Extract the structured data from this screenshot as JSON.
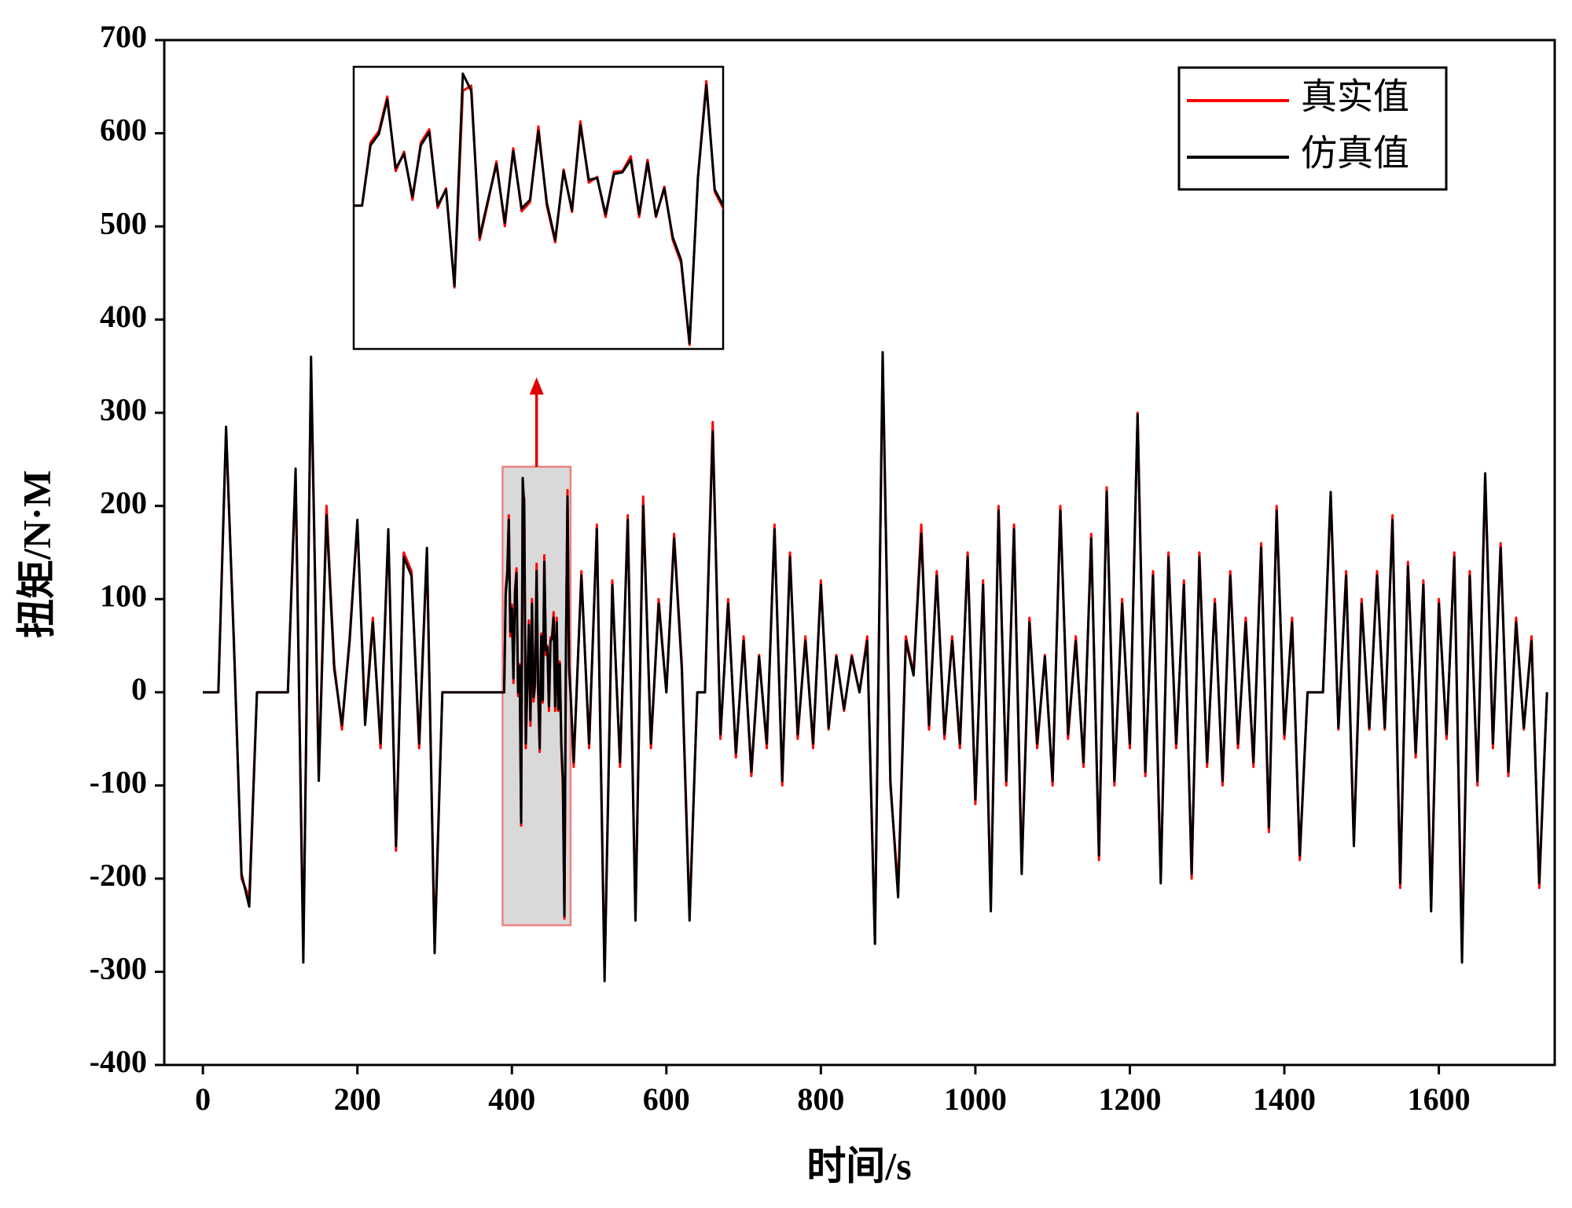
{
  "chart_data": {
    "type": "line",
    "xlabel": "时间/s",
    "ylabel": "扭矩/N·M",
    "xlim": [
      -50,
      1750
    ],
    "ylim": [
      -400,
      700
    ],
    "xticks": [
      0,
      200,
      400,
      600,
      800,
      1000,
      1200,
      1400,
      1600
    ],
    "yticks": [
      -400,
      -300,
      -200,
      -100,
      0,
      100,
      200,
      300,
      400,
      500,
      600,
      700
    ],
    "legend": "upper right",
    "inset": {
      "xlim": [
        388,
        476
      ],
      "ylim": [
        -250,
        242
      ]
    },
    "x": [
      0,
      10,
      20,
      30,
      40,
      50,
      60,
      70,
      80,
      90,
      100,
      110,
      120,
      130,
      140,
      150,
      160,
      170,
      180,
      190,
      200,
      210,
      220,
      230,
      240,
      250,
      260,
      270,
      280,
      290,
      300,
      310,
      320,
      330,
      340,
      350,
      360,
      370,
      380,
      390,
      392,
      394,
      396,
      398,
      400,
      402,
      404,
      406,
      408,
      410,
      412,
      414,
      416,
      418,
      420,
      422,
      424,
      426,
      428,
      430,
      432,
      434,
      436,
      438,
      440,
      442,
      444,
      446,
      448,
      450,
      452,
      454,
      456,
      458,
      460,
      462,
      464,
      466,
      468,
      470,
      472,
      474,
      476,
      480,
      490,
      500,
      510,
      520,
      530,
      540,
      550,
      560,
      570,
      580,
      590,
      600,
      610,
      620,
      630,
      640,
      650,
      660,
      670,
      680,
      690,
      700,
      710,
      720,
      730,
      740,
      750,
      760,
      770,
      780,
      790,
      800,
      810,
      820,
      830,
      840,
      850,
      860,
      870,
      880,
      890,
      900,
      910,
      920,
      930,
      940,
      950,
      960,
      970,
      980,
      990,
      1000,
      1010,
      1020,
      1030,
      1040,
      1050,
      1060,
      1070,
      1080,
      1090,
      1100,
      1110,
      1120,
      1130,
      1140,
      1150,
      1160,
      1170,
      1180,
      1190,
      1200,
      1210,
      1220,
      1230,
      1240,
      1250,
      1260,
      1270,
      1280,
      1290,
      1300,
      1310,
      1320,
      1330,
      1340,
      1350,
      1360,
      1370,
      1380,
      1390,
      1400,
      1410,
      1420,
      1430,
      1440,
      1450,
      1460,
      1470,
      1480,
      1490,
      1500,
      1510,
      1520,
      1530,
      1540,
      1550,
      1560,
      1570,
      1580,
      1590,
      1600,
      1610,
      1620,
      1630,
      1640,
      1650,
      1660,
      1670,
      1680,
      1690,
      1700,
      1710,
      1720,
      1730,
      1740
    ],
    "series": [
      {
        "name": "真实值",
        "color": "#ff0000",
        "values": [
          0,
          0,
          0,
          280,
          60,
          -200,
          -220,
          0,
          0,
          0,
          0,
          0,
          230,
          -280,
          350,
          -90,
          200,
          30,
          -40,
          60,
          180,
          -30,
          80,
          -60,
          170,
          -170,
          150,
          130,
          -60,
          150,
          -270,
          0,
          0,
          0,
          0,
          0,
          0,
          0,
          0,
          0,
          110,
          130,
          190,
          60,
          94,
          10,
          110,
          133,
          -4,
          30,
          -143,
          200,
          209,
          -60,
          6,
          77,
          -36,
          100,
          -10,
          6,
          138,
          0,
          -64,
          63,
          -11,
          147,
          40,
          50,
          -20,
          59,
          60,
          86,
          -20,
          80,
          -20,
          33,
          -60,
          -100,
          -243,
          50,
          217,
          24,
          -4,
          -80,
          130,
          -60,
          180,
          -300,
          120,
          -80,
          190,
          -240,
          210,
          -60,
          100,
          0,
          170,
          30,
          -240,
          0,
          0,
          290,
          -50,
          100,
          -70,
          60,
          -90,
          40,
          -60,
          180,
          -100,
          150,
          -50,
          60,
          -60,
          120,
          -40,
          40,
          -20,
          40,
          0,
          60,
          -270,
          360,
          -100,
          -210,
          60,
          20,
          180,
          -40,
          130,
          -50,
          60,
          -60,
          150,
          -120,
          120,
          -230,
          200,
          -100,
          180,
          -190,
          80,
          -60,
          40,
          -100,
          200,
          -50,
          60,
          -80,
          170,
          -180,
          220,
          -100,
          100,
          -60,
          300,
          -90,
          130,
          -200,
          150,
          -60,
          120,
          -200,
          150,
          -80,
          100,
          -100,
          130,
          -60,
          80,
          -80,
          160,
          -150,
          200,
          -50,
          80,
          -180,
          0,
          0,
          0,
          210,
          -40,
          130,
          -160,
          100,
          -40,
          130,
          -40,
          190,
          -210,
          140,
          -70,
          120,
          -230,
          100,
          -50,
          150,
          -280,
          130,
          -100,
          230,
          -60,
          160,
          -90,
          80,
          -40,
          60,
          -210,
          0
        ]
      },
      {
        "name": "仿真值",
        "color": "#000000",
        "values": [
          0,
          0,
          0,
          285,
          55,
          -195,
          -230,
          0,
          0,
          0,
          0,
          0,
          240,
          -290,
          360,
          -95,
          190,
          25,
          -35,
          55,
          185,
          -35,
          75,
          -55,
          175,
          -165,
          145,
          125,
          -55,
          155,
          -280,
          0,
          0,
          0,
          0,
          0,
          0,
          0,
          0,
          0,
          105,
          125,
          185,
          65,
          90,
          15,
          105,
          128,
          0,
          28,
          -140,
          230,
          200,
          -55,
          10,
          72,
          -30,
          95,
          -5,
          10,
          130,
          5,
          -60,
          60,
          -8,
          140,
          45,
          48,
          -15,
          55,
          58,
          80,
          -15,
          75,
          -18,
          30,
          -55,
          -95,
          -240,
          48,
          210,
          28,
          0,
          -75,
          125,
          -55,
          175,
          -310,
          115,
          -75,
          185,
          -245,
          200,
          -55,
          95,
          0,
          165,
          25,
          -245,
          0,
          0,
          280,
          -45,
          95,
          -65,
          55,
          -85,
          38,
          -55,
          175,
          -95,
          145,
          -45,
          55,
          -55,
          115,
          -38,
          38,
          -18,
          38,
          0,
          55,
          -270,
          365,
          -95,
          -220,
          55,
          18,
          170,
          -35,
          125,
          -45,
          55,
          -55,
          145,
          -115,
          115,
          -235,
          195,
          -95,
          175,
          -195,
          75,
          -55,
          38,
          -95,
          195,
          -45,
          55,
          -75,
          165,
          -175,
          215,
          -95,
          95,
          -55,
          298,
          -85,
          125,
          -205,
          145,
          -55,
          115,
          -195,
          145,
          -75,
          95,
          -95,
          125,
          -55,
          75,
          -75,
          155,
          -145,
          195,
          -45,
          75,
          -175,
          0,
          0,
          0,
          215,
          -38,
          125,
          -165,
          95,
          -38,
          125,
          -38,
          185,
          -205,
          135,
          -65,
          115,
          -235,
          95,
          -45,
          145,
          -290,
          125,
          -95,
          235,
          -55,
          155,
          -85,
          75,
          -38,
          55,
          -205,
          0
        ]
      }
    ]
  }
}
